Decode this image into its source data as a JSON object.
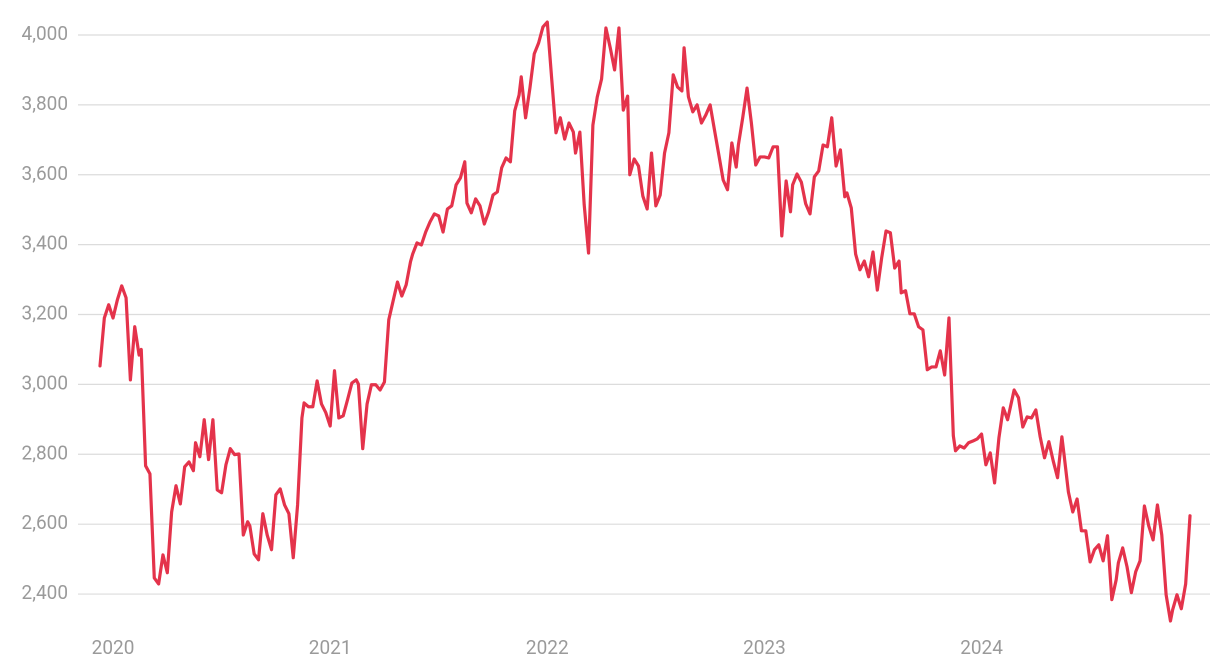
{
  "chart_data": {
    "type": "line",
    "series": [
      {
        "color": "#e4334b",
        "x": [
          2019.94,
          2019.96,
          2019.98,
          2020,
          2020.02,
          2020.04,
          2020.06,
          2020.08,
          2020.1,
          2020.12,
          2020.13,
          2020.15,
          2020.17,
          2020.19,
          2020.21,
          2020.23,
          2020.25,
          2020.27,
          2020.29,
          2020.31,
          2020.33,
          2020.35,
          2020.37,
          2020.38,
          2020.4,
          2020.42,
          2020.44,
          2020.46,
          2020.48,
          2020.5,
          2020.52,
          2020.54,
          2020.56,
          2020.58,
          2020.6,
          2020.62,
          2020.63,
          2020.65,
          2020.67,
          2020.69,
          2020.71,
          2020.73,
          2020.75,
          2020.77,
          2020.79,
          2020.81,
          2020.83,
          2020.85,
          2020.87,
          2020.88,
          2020.9,
          2020.92,
          2020.94,
          2020.96,
          2020.98,
          2021,
          2021.02,
          2021.04,
          2021.06,
          2021.08,
          2021.1,
          2021.12,
          2021.13,
          2021.15,
          2021.17,
          2021.19,
          2021.21,
          2021.23,
          2021.25,
          2021.27,
          2021.29,
          2021.31,
          2021.33,
          2021.35,
          2021.37,
          2021.38,
          2021.4,
          2021.42,
          2021.44,
          2021.46,
          2021.48,
          2021.5,
          2021.52,
          2021.54,
          2021.56,
          2021.58,
          2021.6,
          2021.62,
          2021.63,
          2021.65,
          2021.67,
          2021.69,
          2021.71,
          2021.73,
          2021.75,
          2021.77,
          2021.79,
          2021.81,
          2021.83,
          2021.85,
          2021.87,
          2021.88,
          2021.9,
          2021.92,
          2021.94,
          2021.96,
          2021.98,
          2022,
          2022.02,
          2022.04,
          2022.06,
          2022.08,
          2022.1,
          2022.12,
          2022.13,
          2022.15,
          2022.17,
          2022.19,
          2022.21,
          2022.23,
          2022.25,
          2022.27,
          2022.29,
          2022.31,
          2022.33,
          2022.35,
          2022.37,
          2022.38,
          2022.4,
          2022.42,
          2022.44,
          2022.46,
          2022.48,
          2022.5,
          2022.52,
          2022.54,
          2022.56,
          2022.58,
          2022.6,
          2022.62,
          2022.63,
          2022.65,
          2022.67,
          2022.69,
          2022.71,
          2022.73,
          2022.75,
          2022.77,
          2022.79,
          2022.81,
          2022.83,
          2022.85,
          2022.87,
          2022.88,
          2022.9,
          2022.92,
          2022.94,
          2022.96,
          2022.98,
          2023,
          2023.02,
          2023.04,
          2023.06,
          2023.08,
          2023.1,
          2023.12,
          2023.13,
          2023.15,
          2023.17,
          2023.19,
          2023.21,
          2023.23,
          2023.25,
          2023.27,
          2023.29,
          2023.31,
          2023.33,
          2023.35,
          2023.37,
          2023.38,
          2023.4,
          2023.42,
          2023.44,
          2023.46,
          2023.48,
          2023.5,
          2023.52,
          2023.54,
          2023.56,
          2023.58,
          2023.6,
          2023.62,
          2023.63,
          2023.65,
          2023.67,
          2023.69,
          2023.71,
          2023.73,
          2023.75,
          2023.77,
          2023.79,
          2023.81,
          2023.83,
          2023.85,
          2023.87,
          2023.88,
          2023.9,
          2023.92,
          2023.94,
          2023.96,
          2023.98,
          2024,
          2024.02,
          2024.04,
          2024.06,
          2024.08,
          2024.1,
          2024.12,
          2024.13,
          2024.15,
          2024.17,
          2024.19,
          2024.21,
          2024.23,
          2024.25,
          2024.27,
          2024.29,
          2024.31,
          2024.33,
          2024.35,
          2024.37,
          2024.38,
          2024.4,
          2024.42,
          2024.44,
          2024.46,
          2024.48,
          2024.5,
          2024.52,
          2024.54,
          2024.56,
          2024.58,
          2024.6,
          2024.62,
          2024.63,
          2024.65,
          2024.67,
          2024.69,
          2024.71,
          2024.73,
          2024.75,
          2024.77,
          2024.79,
          2024.81,
          2024.83,
          2024.85,
          2024.87,
          2024.88,
          2024.9,
          2024.92,
          2024.94,
          2024.96
        ],
        "values": [
          3053,
          3190,
          3228,
          3190,
          3242,
          3282,
          3248,
          3013,
          3165,
          3084,
          3100,
          2767,
          2744,
          2446,
          2429,
          2512,
          2461,
          2635,
          2710,
          2658,
          2764,
          2778,
          2753,
          2833,
          2793,
          2899,
          2785,
          2899,
          2698,
          2690,
          2770,
          2816,
          2799,
          2801,
          2569,
          2607,
          2595,
          2515,
          2498,
          2630,
          2569,
          2527,
          2684,
          2701,
          2655,
          2630,
          2504,
          2655,
          2904,
          2947,
          2936,
          2936,
          3010,
          2944,
          2919,
          2881,
          3039,
          2904,
          2910,
          2956,
          3004,
          3013,
          3001,
          2816,
          2944,
          2999,
          2999,
          2984,
          3007,
          3185,
          3239,
          3293,
          3253,
          3285,
          3351,
          3373,
          3405,
          3399,
          3436,
          3465,
          3488,
          3482,
          3436,
          3502,
          3511,
          3571,
          3591,
          3637,
          3519,
          3491,
          3531,
          3511,
          3459,
          3494,
          3542,
          3551,
          3620,
          3648,
          3637,
          3783,
          3828,
          3880,
          3763,
          3848,
          3946,
          3977,
          4023,
          4037,
          3877,
          3720,
          3763,
          3702,
          3748,
          3722,
          3662,
          3722,
          3514,
          3376,
          3742,
          3822,
          3874,
          4020,
          3963,
          3900,
          4020,
          3785,
          3825,
          3600,
          3645,
          3625,
          3539,
          3502,
          3662,
          3511,
          3542,
          3662,
          3720,
          3886,
          3851,
          3840,
          3963,
          3823,
          3780,
          3800,
          3748,
          3771,
          3800,
          3728,
          3657,
          3585,
          3557,
          3691,
          3622,
          3685,
          3763,
          3848,
          3748,
          3628,
          3651,
          3651,
          3648,
          3680,
          3680,
          3425,
          3582,
          3494,
          3571,
          3602,
          3579,
          3517,
          3488,
          3594,
          3611,
          3685,
          3680,
          3763,
          3625,
          3671,
          3537,
          3548,
          3505,
          3373,
          3328,
          3353,
          3308,
          3379,
          3270,
          3362,
          3439,
          3434,
          3333,
          3353,
          3262,
          3268,
          3202,
          3202,
          3165,
          3156,
          3042,
          3050,
          3050,
          3096,
          3027,
          3190,
          2853,
          2810,
          2824,
          2818,
          2833,
          2838,
          2844,
          2858,
          2770,
          2804,
          2718,
          2847,
          2933,
          2899,
          2927,
          2984,
          2962,
          2878,
          2907,
          2904,
          2927,
          2850,
          2790,
          2836,
          2781,
          2733,
          2850,
          2799,
          2692,
          2635,
          2672,
          2581,
          2581,
          2492,
          2527,
          2541,
          2495,
          2567,
          2384,
          2441,
          2489,
          2532,
          2478,
          2404,
          2464,
          2495,
          2652,
          2595,
          2555,
          2655,
          2569,
          2398,
          2323,
          2355,
          2398,
          2358,
          2429,
          2624
        ]
      }
    ],
    "xlim": [
      2019.94,
      2024.96
    ],
    "xticks": [
      2020,
      2021,
      2022,
      2023,
      2024
    ],
    "ylim": [
      2300,
      4050
    ],
    "yticks": [
      {
        "value": 2400,
        "label": "2,400"
      },
      {
        "value": 2600,
        "label": "2,600"
      },
      {
        "value": 2800,
        "label": "2,800"
      },
      {
        "value": 3000,
        "label": "3,000"
      },
      {
        "value": 3200,
        "label": "3,200"
      },
      {
        "value": 3400,
        "label": "3,400"
      },
      {
        "value": 3600,
        "label": "3,600"
      },
      {
        "value": 3800,
        "label": "3,800"
      },
      {
        "value": 4000,
        "label": "4,000"
      }
    ],
    "grid": true
  }
}
